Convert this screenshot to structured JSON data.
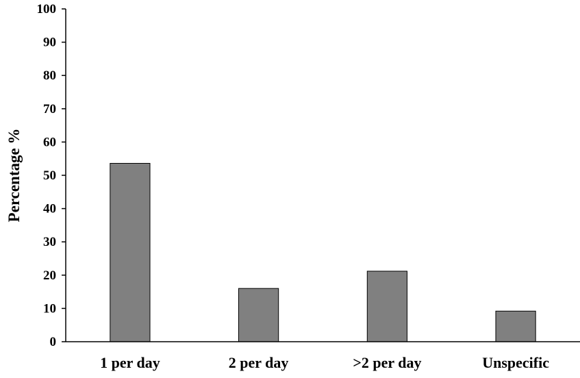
{
  "chart_data": {
    "type": "bar",
    "title": "",
    "xlabel": "",
    "ylabel": "Percentage  %",
    "categories": [
      "1 per day",
      "2 per day",
      ">2 per day",
      "Unspecific"
    ],
    "values": [
      53.6,
      16.0,
      21.2,
      9.2
    ],
    "ylim": [
      0,
      100
    ],
    "yticks": [
      "0",
      "10",
      "20",
      "30",
      "40",
      "50",
      "60",
      "70",
      "80",
      "90",
      "100"
    ],
    "grid": false,
    "legend": "none",
    "bar_color": "#808080",
    "bar_edge_color": "#000000"
  }
}
